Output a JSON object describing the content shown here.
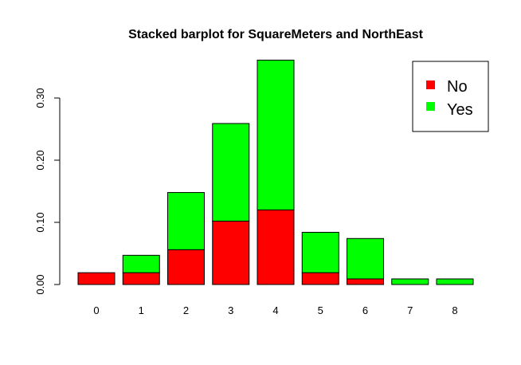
{
  "chart_data": {
    "type": "bar",
    "stacked": true,
    "title": "Stacked barplot for SquareMeters and NorthEast",
    "xlabel": "",
    "ylabel": "",
    "categories": [
      "0",
      "1",
      "2",
      "3",
      "4",
      "5",
      "6",
      "7",
      "8"
    ],
    "series": [
      {
        "name": "No",
        "color": "#ff0000",
        "values": [
          0.019,
          0.019,
          0.056,
          0.102,
          0.12,
          0.019,
          0.009,
          0.0,
          0.0
        ]
      },
      {
        "name": "Yes",
        "color": "#00ff00",
        "values": [
          0.0,
          0.028,
          0.092,
          0.157,
          0.241,
          0.065,
          0.065,
          0.009,
          0.009
        ]
      }
    ],
    "ylim": [
      0,
      0.36
    ],
    "yticks": [
      "0.00",
      "0.10",
      "0.20",
      "0.30"
    ],
    "ytick_values": [
      0,
      0.1,
      0.2,
      0.3
    ],
    "grid": false,
    "legend_position": "top-right"
  }
}
